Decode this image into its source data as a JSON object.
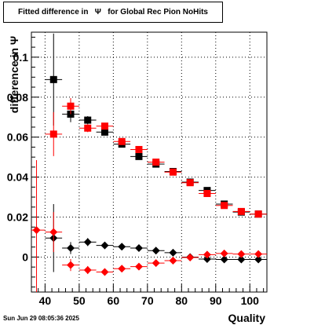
{
  "header": {
    "title": "Fitted difference in   Ψ   for Global Rec Pion NoHits"
  },
  "footer": {
    "date": "Sun Jun 29 08:05:36 2025"
  },
  "chart_data": {
    "type": "scatter",
    "title": "Fitted difference in   Ψ   for Global Rec Pion NoHits",
    "xlabel": "Quality",
    "ylabel": "difference in  Ψ",
    "xlim": [
      36,
      105
    ],
    "ylim": [
      -0.0175,
      0.1125
    ],
    "xticks": [
      40,
      50,
      60,
      70,
      80,
      90,
      100
    ],
    "yticks": [
      0,
      0.02,
      0.04,
      0.06,
      0.08,
      0.1
    ],
    "xtick_labels": [
      "40",
      "50",
      "60",
      "70",
      "80",
      "90",
      "100"
    ],
    "ytick_labels": [
      "0",
      "0.02",
      "0.04",
      "0.06",
      "0.08",
      "0.1"
    ],
    "grid": true,
    "xerr": 2.5,
    "series": [
      {
        "marker": "square",
        "color": "#000000",
        "x": [
          42.5,
          47.5,
          52.5,
          57.5,
          62.5,
          67.5,
          72.5,
          77.5,
          82.5,
          87.5,
          92.5,
          97.5,
          102.5
        ],
        "y": [
          0.0888,
          0.0715,
          0.0685,
          0.0625,
          0.0565,
          0.0503,
          0.0465,
          0.0428,
          0.0375,
          0.0333,
          0.0265,
          0.0225,
          0.0215
        ],
        "yerr": [
          0.023,
          0.004,
          0.002,
          0.0015,
          0.001,
          0.001,
          0.001,
          0.001,
          0.001,
          0.001,
          0.001,
          0.001,
          0.001
        ]
      },
      {
        "marker": "square",
        "color": "#ff0000",
        "x": [
          42.5,
          47.5,
          52.5,
          57.5,
          62.5,
          67.5,
          72.5,
          77.5,
          82.5,
          87.5,
          92.5,
          97.5,
          102.5
        ],
        "y": [
          0.0615,
          0.0755,
          0.0645,
          0.0655,
          0.0578,
          0.0538,
          0.0475,
          0.0425,
          0.0372,
          0.0318,
          0.0258,
          0.0228,
          0.0215
        ],
        "yerr": [
          0.011,
          0.004,
          0.002,
          0.0015,
          0.001,
          0.001,
          0.001,
          0.001,
          0.001,
          0.001,
          0.001,
          0.001,
          0.001
        ]
      },
      {
        "marker": "diamond",
        "color": "#000000",
        "x": [
          42.5,
          47.5,
          52.5,
          57.5,
          62.5,
          67.5,
          72.5,
          77.5,
          82.5,
          87.5,
          92.5,
          97.5,
          102.5
        ],
        "y": [
          0.0095,
          0.0045,
          0.0075,
          0.0058,
          0.0052,
          0.0045,
          0.0032,
          0.0022,
          0.0,
          -0.001,
          -0.0012,
          -0.0012,
          -0.0012
        ],
        "yerr": [
          0.017,
          0.003,
          0.002,
          0.0012,
          0.001,
          0.001,
          0.001,
          0.001,
          0.001,
          0.001,
          0.001,
          0.001,
          0.001
        ]
      },
      {
        "marker": "diamond",
        "color": "#ff0000",
        "x": [
          37.5,
          42.5,
          47.5,
          52.5,
          57.5,
          62.5,
          67.5,
          72.5,
          77.5,
          82.5,
          87.5,
          92.5,
          97.5,
          102.5
        ],
        "y": [
          0.0135,
          0.0125,
          -0.004,
          -0.0065,
          -0.0075,
          -0.0058,
          -0.0048,
          -0.003,
          -0.0018,
          -0.0002,
          0.0012,
          0.0018,
          0.0015,
          0.0015
        ],
        "yerr": [
          0.035,
          0.01,
          0.003,
          0.002,
          0.0015,
          0.001,
          0.001,
          0.001,
          0.001,
          0.001,
          0.001,
          0.001,
          0.001,
          0.001
        ]
      }
    ]
  }
}
